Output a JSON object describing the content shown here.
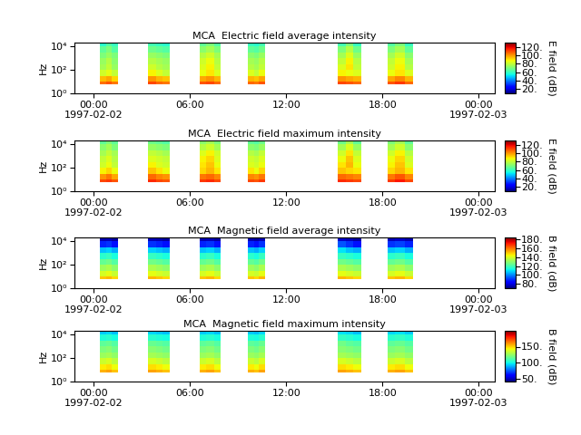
{
  "chart_data": [
    {
      "type": "heatmap",
      "title": "MCA  Electric field average intensity",
      "y_label": "Hz",
      "log": "y",
      "x": [
        0.4,
        0.8,
        1.1,
        1.5,
        3.4,
        3.9,
        4.3,
        4.75,
        6.6,
        7.0,
        7.5,
        7.9,
        9.6,
        10.0,
        10.3,
        10.7,
        15.2,
        15.7,
        16.2,
        16.7,
        18.3,
        18.8,
        19.4,
        19.9
      ],
      "y": [
        5.6,
        10,
        30,
        100,
        300,
        1000,
        3000,
        10000,
        17800
      ],
      "cells": [
        [
          105,
          108,
          104,
          null,
          110,
          106,
          104,
          null,
          108,
          110,
          106,
          null,
          106,
          104,
          108,
          null,
          110,
          108,
          106,
          null,
          108,
          112,
          106
        ],
        [
          95,
          98,
          92,
          null,
          100,
          96,
          94,
          null,
          98,
          100,
          96,
          null,
          96,
          94,
          98,
          null,
          100,
          98,
          96,
          null,
          98,
          102,
          96
        ],
        [
          82,
          85,
          80,
          null,
          88,
          84,
          80,
          null,
          86,
          90,
          84,
          null,
          84,
          80,
          86,
          null,
          88,
          86,
          84,
          null,
          86,
          90,
          84
        ],
        [
          76,
          80,
          74,
          null,
          82,
          78,
          76,
          null,
          84,
          88,
          80,
          null,
          78,
          76,
          80,
          null,
          84,
          90,
          80,
          null,
          82,
          88,
          78
        ],
        [
          74,
          78,
          72,
          null,
          78,
          76,
          74,
          null,
          82,
          86,
          78,
          null,
          76,
          74,
          78,
          null,
          80,
          88,
          78,
          null,
          80,
          86,
          76
        ],
        [
          70,
          74,
          70,
          null,
          74,
          72,
          70,
          null,
          78,
          82,
          76,
          null,
          72,
          70,
          74,
          null,
          76,
          84,
          74,
          null,
          76,
          82,
          72
        ],
        [
          66,
          70,
          64,
          null,
          68,
          66,
          64,
          null,
          72,
          76,
          70,
          null,
          66,
          64,
          68,
          null,
          70,
          78,
          68,
          null,
          70,
          76,
          66
        ],
        [
          58,
          64,
          60,
          null,
          62,
          60,
          58,
          null,
          66,
          70,
          64,
          null,
          60,
          58,
          62,
          null,
          62,
          70,
          60,
          null,
          64,
          70,
          60
        ]
      ],
      "xlim": [
        -1.2,
        25
      ],
      "ylim": [
        1,
        20000
      ],
      "xticks": [
        {
          "value": 0,
          "label": "00:00\n1997-02-02"
        },
        {
          "value": 6,
          "label": "06:00"
        },
        {
          "value": 12,
          "label": "12:00"
        },
        {
          "value": 18,
          "label": "18:00"
        },
        {
          "value": 24,
          "label": "00:00\n1997-02-03"
        }
      ],
      "yticks": [
        {
          "value": 1,
          "label": "10⁰"
        },
        {
          "value": 100,
          "label": "10²"
        },
        {
          "value": 10000,
          "label": "10⁴"
        }
      ],
      "colorbar_label": "E field (dB)",
      "colorbar_range": [
        10,
        130
      ],
      "colorbar_ticks": [
        {
          "value": 20,
          "label": "20."
        },
        {
          "value": 40,
          "label": "40."
        },
        {
          "value": 60,
          "label": "60."
        },
        {
          "value": 80,
          "label": "80."
        },
        {
          "value": 100,
          "label": "100."
        },
        {
          "value": 120,
          "label": "120."
        }
      ]
    },
    {
      "type": "heatmap",
      "title": "MCA  Electric field maximum intensity",
      "y_label": "Hz",
      "log": "y",
      "x": [
        0.4,
        0.8,
        1.1,
        1.5,
        3.4,
        3.9,
        4.3,
        4.75,
        6.6,
        7.0,
        7.5,
        7.9,
        9.6,
        10.0,
        10.3,
        10.7,
        15.2,
        15.7,
        16.2,
        16.7,
        18.3,
        18.8,
        19.4,
        19.9
      ],
      "y": [
        5.6,
        10,
        30,
        100,
        300,
        1000,
        3000,
        10000,
        17800
      ],
      "cells": [
        [
          110,
          112,
          108,
          null,
          114,
          110,
          108,
          null,
          112,
          114,
          110,
          null,
          110,
          108,
          112,
          null,
          114,
          112,
          110,
          null,
          112,
          116,
          110
        ],
        [
          100,
          104,
          98,
          null,
          106,
          102,
          100,
          null,
          104,
          106,
          102,
          null,
          102,
          100,
          104,
          null,
          106,
          104,
          102,
          null,
          104,
          108,
          102
        ],
        [
          88,
          92,
          86,
          null,
          94,
          90,
          86,
          null,
          92,
          96,
          90,
          null,
          90,
          86,
          92,
          null,
          94,
          92,
          90,
          null,
          92,
          96,
          90
        ],
        [
          82,
          86,
          80,
          null,
          88,
          84,
          82,
          null,
          90,
          94,
          86,
          null,
          84,
          82,
          86,
          null,
          90,
          96,
          86,
          null,
          88,
          94,
          84
        ],
        [
          80,
          84,
          78,
          null,
          84,
          82,
          80,
          null,
          88,
          92,
          84,
          null,
          82,
          80,
          84,
          null,
          86,
          94,
          84,
          null,
          86,
          92,
          82
        ],
        [
          76,
          80,
          76,
          null,
          80,
          78,
          76,
          null,
          84,
          88,
          82,
          null,
          78,
          76,
          80,
          null,
          82,
          90,
          80,
          null,
          82,
          88,
          78
        ],
        [
          72,
          76,
          70,
          null,
          74,
          72,
          70,
          null,
          78,
          82,
          76,
          null,
          72,
          70,
          74,
          null,
          76,
          84,
          74,
          null,
          76,
          82,
          72
        ],
        [
          66,
          70,
          66,
          null,
          68,
          66,
          64,
          null,
          72,
          76,
          70,
          null,
          66,
          64,
          68,
          null,
          68,
          76,
          66,
          null,
          70,
          76,
          66
        ]
      ],
      "xlim": [
        -1.2,
        25
      ],
      "ylim": [
        1,
        20000
      ],
      "xticks": [
        {
          "value": 0,
          "label": "00:00\n1997-02-02"
        },
        {
          "value": 6,
          "label": "06:00"
        },
        {
          "value": 12,
          "label": "12:00"
        },
        {
          "value": 18,
          "label": "18:00"
        },
        {
          "value": 24,
          "label": "00:00\n1997-02-03"
        }
      ],
      "yticks": [
        {
          "value": 1,
          "label": "10⁰"
        },
        {
          "value": 100,
          "label": "10²"
        },
        {
          "value": 10000,
          "label": "10⁴"
        }
      ],
      "colorbar_label": "E field (dB)",
      "colorbar_range": [
        10,
        130
      ],
      "colorbar_ticks": [
        {
          "value": 20,
          "label": "20."
        },
        {
          "value": 40,
          "label": "40."
        },
        {
          "value": 60,
          "label": "60."
        },
        {
          "value": 80,
          "label": "80."
        },
        {
          "value": 100,
          "label": "100."
        },
        {
          "value": 120,
          "label": "120."
        }
      ]
    },
    {
      "type": "heatmap",
      "title": "MCA  Magnetic field average intensity",
      "y_label": "Hz",
      "log": "y",
      "x": [
        0.4,
        0.8,
        1.1,
        1.5,
        3.4,
        3.9,
        4.3,
        4.75,
        6.6,
        7.0,
        7.5,
        7.9,
        9.6,
        10.0,
        10.3,
        10.7,
        15.2,
        15.7,
        16.2,
        16.7,
        18.3,
        18.8,
        19.4,
        19.9
      ],
      "y": [
        5.6,
        10,
        30,
        100,
        300,
        1000,
        3000,
        10000,
        17800
      ],
      "cells": [
        [
          150,
          152,
          148,
          null,
          152,
          150,
          148,
          null,
          150,
          152,
          148,
          null,
          150,
          148,
          152,
          null,
          152,
          150,
          148,
          null,
          150,
          152,
          148
        ],
        [
          140,
          142,
          138,
          null,
          142,
          140,
          138,
          null,
          140,
          142,
          138,
          null,
          140,
          138,
          142,
          null,
          142,
          140,
          138,
          null,
          140,
          142,
          138
        ],
        [
          132,
          134,
          130,
          null,
          134,
          132,
          130,
          null,
          132,
          134,
          130,
          null,
          132,
          130,
          134,
          null,
          134,
          132,
          130,
          null,
          132,
          134,
          130
        ],
        [
          124,
          126,
          122,
          null,
          126,
          124,
          122,
          null,
          124,
          126,
          122,
          null,
          124,
          122,
          126,
          null,
          126,
          124,
          122,
          null,
          124,
          126,
          122
        ],
        [
          116,
          118,
          114,
          null,
          118,
          116,
          114,
          null,
          116,
          118,
          114,
          null,
          116,
          114,
          118,
          null,
          118,
          116,
          114,
          null,
          116,
          118,
          114
        ],
        [
          106,
          108,
          104,
          null,
          108,
          106,
          104,
          null,
          106,
          108,
          104,
          null,
          106,
          104,
          108,
          null,
          110,
          106,
          104,
          null,
          106,
          108,
          104
        ],
        [
          88,
          90,
          86,
          null,
          90,
          88,
          86,
          null,
          88,
          90,
          86,
          null,
          88,
          86,
          90,
          null,
          94,
          90,
          86,
          null,
          90,
          92,
          88
        ],
        [
          75,
          76,
          74,
          null,
          76,
          75,
          74,
          null,
          75,
          76,
          74,
          null,
          75,
          74,
          76,
          null,
          78,
          76,
          74,
          null,
          76,
          78,
          75
        ]
      ],
      "xlim": [
        -1.2,
        25
      ],
      "ylim": [
        1,
        20000
      ],
      "xticks": [
        {
          "value": 0,
          "label": "00:00\n1997-02-02"
        },
        {
          "value": 6,
          "label": "06:00"
        },
        {
          "value": 12,
          "label": "12:00"
        },
        {
          "value": 18,
          "label": "18:00"
        },
        {
          "value": 24,
          "label": "00:00\n1997-02-03"
        }
      ],
      "yticks": [
        {
          "value": 1,
          "label": "10⁰"
        },
        {
          "value": 100,
          "label": "10²"
        },
        {
          "value": 10000,
          "label": "10⁴"
        }
      ],
      "colorbar_label": "B field (dB)",
      "colorbar_range": [
        70,
        185
      ],
      "colorbar_ticks": [
        {
          "value": 80,
          "label": "80."
        },
        {
          "value": 100,
          "label": "100."
        },
        {
          "value": 120,
          "label": "120."
        },
        {
          "value": 140,
          "label": "140."
        },
        {
          "value": 160,
          "label": "160."
        },
        {
          "value": 180,
          "label": "180."
        }
      ]
    },
    {
      "type": "heatmap",
      "title": "MCA  Magnetic field maximum intensity",
      "y_label": "Hz",
      "log": "y",
      "x": [
        0.4,
        0.8,
        1.1,
        1.5,
        3.4,
        3.9,
        4.3,
        4.75,
        6.6,
        7.0,
        7.5,
        7.9,
        9.6,
        10.0,
        10.3,
        10.7,
        15.2,
        15.7,
        16.2,
        16.7,
        18.3,
        18.8,
        19.4,
        19.9
      ],
      "y": [
        5.6,
        10,
        30,
        100,
        300,
        1000,
        3000,
        10000,
        17800
      ],
      "cells": [
        [
          155,
          158,
          152,
          null,
          158,
          155,
          152,
          null,
          155,
          158,
          152,
          null,
          155,
          152,
          158,
          null,
          158,
          155,
          152,
          null,
          155,
          158,
          152
        ],
        [
          145,
          148,
          142,
          null,
          148,
          145,
          142,
          null,
          145,
          148,
          142,
          null,
          145,
          142,
          148,
          null,
          148,
          145,
          142,
          null,
          145,
          148,
          142
        ],
        [
          135,
          138,
          132,
          null,
          138,
          135,
          132,
          null,
          135,
          138,
          132,
          null,
          135,
          132,
          138,
          null,
          138,
          135,
          132,
          null,
          135,
          138,
          132
        ],
        [
          126,
          128,
          124,
          null,
          128,
          126,
          124,
          null,
          126,
          128,
          124,
          null,
          126,
          124,
          128,
          null,
          128,
          126,
          124,
          null,
          126,
          128,
          124
        ],
        [
          120,
          122,
          118,
          null,
          122,
          120,
          118,
          null,
          120,
          122,
          118,
          null,
          120,
          118,
          122,
          null,
          122,
          120,
          118,
          null,
          120,
          122,
          118
        ],
        [
          114,
          116,
          112,
          null,
          116,
          114,
          112,
          null,
          114,
          116,
          112,
          null,
          114,
          112,
          116,
          null,
          118,
          114,
          112,
          null,
          114,
          116,
          112
        ],
        [
          102,
          104,
          100,
          null,
          104,
          102,
          100,
          null,
          102,
          104,
          100,
          null,
          102,
          100,
          104,
          null,
          106,
          104,
          100,
          null,
          104,
          106,
          102
        ],
        [
          92,
          94,
          90,
          null,
          94,
          92,
          90,
          null,
          92,
          94,
          90,
          null,
          92,
          90,
          94,
          null,
          96,
          94,
          90,
          null,
          94,
          96,
          92
        ]
      ],
      "xlim": [
        -1.2,
        25
      ],
      "ylim": [
        1,
        20000
      ],
      "xticks": [
        {
          "value": 0,
          "label": "00:00\n1997-02-02"
        },
        {
          "value": 6,
          "label": "06:00"
        },
        {
          "value": 12,
          "label": "12:00"
        },
        {
          "value": 18,
          "label": "18:00"
        },
        {
          "value": 24,
          "label": "00:00\n1997-02-03"
        }
      ],
      "yticks": [
        {
          "value": 1,
          "label": "10⁰"
        },
        {
          "value": 100,
          "label": "10²"
        },
        {
          "value": 10000,
          "label": "10⁴"
        }
      ],
      "colorbar_label": "B field (dB)",
      "colorbar_range": [
        40,
        200
      ],
      "colorbar_ticks": [
        {
          "value": 50,
          "label": "50."
        },
        {
          "value": 100,
          "label": "100."
        },
        {
          "value": 150,
          "label": "150."
        }
      ]
    }
  ]
}
